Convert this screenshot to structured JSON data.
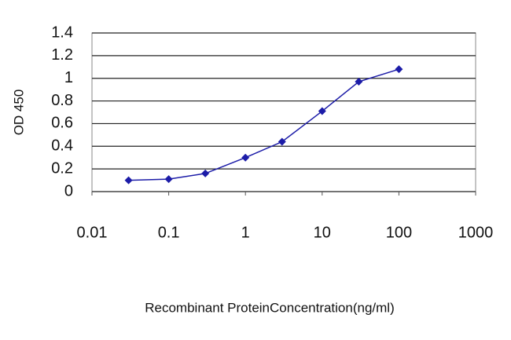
{
  "chart_data": {
    "type": "line",
    "x_label": "Recombinant ProteinConcentration(ng/ml)",
    "y_label": "OD 450",
    "x": [
      0.03,
      0.1,
      0.3,
      1,
      3,
      10,
      30,
      100
    ],
    "series": [
      {
        "color": "#1c1ca8",
        "values": [
          0.1,
          0.11,
          0.16,
          0.3,
          0.44,
          0.71,
          0.97,
          1.08
        ]
      }
    ],
    "xlim": [
      0.01,
      1000
    ],
    "xticks": [
      0.01,
      0.1,
      1,
      10,
      100,
      1000
    ],
    "log_x": true,
    "ylim": [
      0,
      1.4
    ],
    "yticks": [
      0,
      0.2,
      0.4,
      0.6,
      0.8,
      1,
      1.2,
      1.4
    ],
    "grid": true
  }
}
